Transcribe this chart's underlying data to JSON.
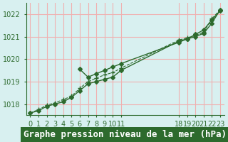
{
  "title": "Graphe pression niveau de la mer (hPa)",
  "background_color": "#d8f0f0",
  "plot_bg_color": "#d8f0f0",
  "grid_color": "#f0b0b0",
  "line_color": "#2d6a2d",
  "marker_color": "#2d6a2d",
  "xlabel_color": "#2d6a2d",
  "x_ticks": [
    0,
    1,
    2,
    3,
    4,
    5,
    6,
    7,
    8,
    9,
    10,
    11,
    18,
    19,
    20,
    21,
    22,
    23
  ],
  "ylim": [
    1017.5,
    1022.5
  ],
  "yticks": [
    1018,
    1019,
    1020,
    1021,
    1022
  ],
  "series": [
    {
      "x": [
        0,
        1,
        2,
        3,
        4,
        5,
        6,
        7,
        8,
        9,
        10,
        11,
        18,
        19,
        20,
        21,
        22,
        23
      ],
      "y": [
        1017.6,
        1017.7,
        1017.9,
        1018.0,
        1018.1,
        1018.3,
        1018.6,
        1018.9,
        1019.0,
        1019.1,
        1019.2,
        1019.5,
        1020.8,
        1020.9,
        1021.0,
        1021.15,
        1021.6,
        1022.2
      ],
      "style": "-",
      "marker": "D",
      "markersize": 3.0,
      "linewidth": 1.0
    },
    {
      "x": [
        0,
        1,
        2,
        3,
        4,
        5,
        6,
        7,
        8,
        9,
        10,
        11,
        18,
        19,
        20,
        21,
        22,
        23
      ],
      "y": [
        1017.6,
        1017.75,
        1017.95,
        1018.05,
        1018.2,
        1018.35,
        1018.7,
        1019.0,
        1019.15,
        1019.3,
        1019.4,
        1019.6,
        1020.85,
        1020.95,
        1021.05,
        1021.2,
        1021.8,
        1022.2
      ],
      "style": "--",
      "marker": "+",
      "markersize": 5.0,
      "linewidth": 0.8
    },
    {
      "x": [
        6,
        7,
        8,
        9,
        10,
        11,
        18,
        19,
        20,
        21,
        22,
        23
      ],
      "y": [
        1019.55,
        1019.2,
        1019.35,
        1019.5,
        1019.65,
        1019.8,
        1020.75,
        1020.9,
        1021.1,
        1021.3,
        1021.75,
        1022.15
      ],
      "style": "-",
      "marker": "D",
      "markersize": 3.0,
      "linewidth": 1.0
    }
  ],
  "title_fontsize": 9,
  "tick_fontsize": 7,
  "title_bg_color": "#2d6a2d",
  "title_text_color": "#ffffff"
}
